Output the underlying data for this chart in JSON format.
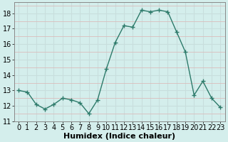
{
  "x": [
    0,
    1,
    2,
    3,
    4,
    5,
    6,
    7,
    8,
    9,
    10,
    11,
    12,
    13,
    14,
    15,
    16,
    17,
    18,
    19,
    20,
    21,
    22,
    23
  ],
  "y": [
    13.0,
    12.9,
    12.1,
    11.8,
    12.1,
    12.5,
    12.4,
    12.2,
    11.5,
    12.4,
    14.4,
    16.1,
    17.2,
    17.1,
    18.2,
    18.1,
    18.2,
    18.1,
    16.8,
    15.5,
    12.7,
    13.6,
    12.5,
    11.9
  ],
  "xlabel": "Humidex (Indice chaleur)",
  "ylim": [
    11,
    18.7
  ],
  "yticks": [
    11,
    12,
    13,
    14,
    15,
    16,
    17,
    18
  ],
  "xticks": [
    0,
    1,
    2,
    3,
    4,
    5,
    6,
    7,
    8,
    9,
    10,
    11,
    12,
    13,
    14,
    15,
    16,
    17,
    18,
    19,
    20,
    21,
    22,
    23
  ],
  "line_color": "#2d7a6a",
  "marker": "+",
  "marker_size": 4,
  "bg_color": "#d4eeec",
  "major_grid_color": "#c8dedd",
  "minor_grid_color": "#dbbcbc",
  "spine_color": "#888888",
  "font_color": "#000000",
  "xlabel_fontsize": 8,
  "tick_fontsize": 7
}
